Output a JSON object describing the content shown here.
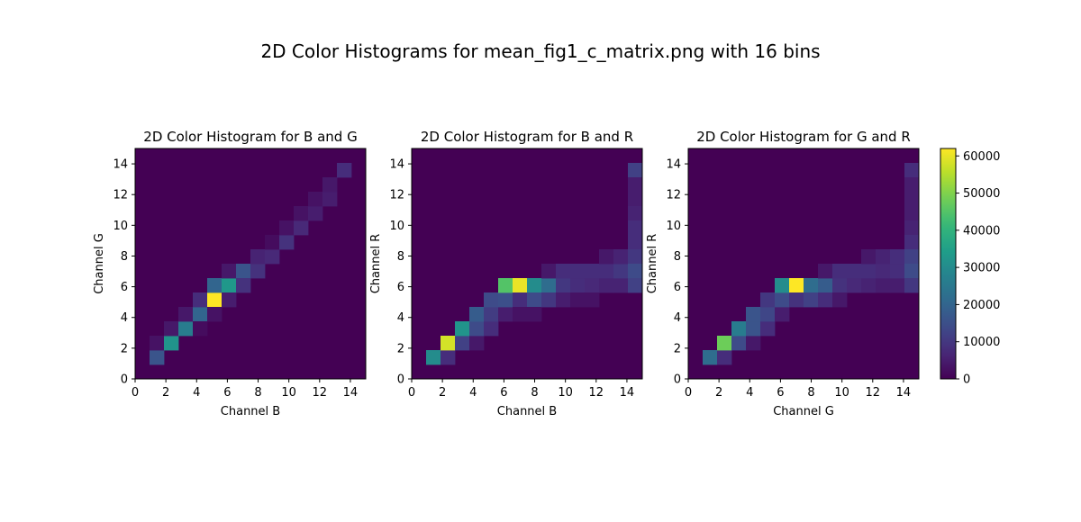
{
  "figure": {
    "title": "2D Color Histograms for mean_fig1_c_matrix.png with 16 bins"
  },
  "chart_data": [
    {
      "type": "heatmap",
      "title": "2D Color Histogram for B and G",
      "xlabel": "Channel B",
      "ylabel": "Channel G",
      "xlim": [
        0,
        15
      ],
      "ylim": [
        0,
        15
      ],
      "x_ticks": [
        0,
        2,
        4,
        6,
        8,
        10,
        12,
        14
      ],
      "y_ticks": [
        0,
        2,
        4,
        6,
        8,
        10,
        12,
        14
      ],
      "colormap": "viridis",
      "vmin": 0,
      "vmax": 62000,
      "cells": [
        [
          1,
          1,
          16000
        ],
        [
          1,
          2,
          3000
        ],
        [
          2,
          2,
          32000
        ],
        [
          2,
          3,
          4000
        ],
        [
          3,
          3,
          26000
        ],
        [
          3,
          4,
          4000
        ],
        [
          4,
          4,
          20000
        ],
        [
          4,
          5,
          8000
        ],
        [
          4,
          3,
          2000
        ],
        [
          5,
          5,
          62000
        ],
        [
          5,
          4,
          3000
        ],
        [
          5,
          6,
          20000
        ],
        [
          6,
          6,
          33000
        ],
        [
          6,
          5,
          5000
        ],
        [
          6,
          7,
          4000
        ],
        [
          7,
          7,
          16000
        ],
        [
          7,
          6,
          9000
        ],
        [
          8,
          7,
          9000
        ],
        [
          8,
          8,
          6000
        ],
        [
          9,
          8,
          7000
        ],
        [
          9,
          9,
          2000
        ],
        [
          10,
          9,
          9000
        ],
        [
          10,
          10,
          3000
        ],
        [
          11,
          10,
          7000
        ],
        [
          11,
          11,
          3000
        ],
        [
          12,
          11,
          5000
        ],
        [
          12,
          12,
          3000
        ],
        [
          13,
          12,
          5000
        ],
        [
          13,
          13,
          4000
        ],
        [
          14,
          14,
          8000
        ]
      ]
    },
    {
      "type": "heatmap",
      "title": "2D Color Histogram for B and R",
      "xlabel": "Channel B",
      "ylabel": "Channel R",
      "xlim": [
        0,
        15
      ],
      "ylim": [
        0,
        15
      ],
      "x_ticks": [
        0,
        2,
        4,
        6,
        8,
        10,
        12,
        14
      ],
      "y_ticks": [
        0,
        2,
        4,
        6,
        8,
        10,
        12,
        14
      ],
      "colormap": "viridis",
      "vmin": 0,
      "vmax": 62000,
      "cells": [
        [
          1,
          1,
          30000
        ],
        [
          2,
          1,
          8000
        ],
        [
          2,
          2,
          58000
        ],
        [
          3,
          2,
          12000
        ],
        [
          3,
          3,
          32000
        ],
        [
          4,
          2,
          4000
        ],
        [
          4,
          3,
          14000
        ],
        [
          4,
          4,
          18000
        ],
        [
          5,
          3,
          8000
        ],
        [
          5,
          4,
          11000
        ],
        [
          5,
          5,
          14000
        ],
        [
          6,
          4,
          5000
        ],
        [
          6,
          5,
          15000
        ],
        [
          6,
          6,
          45000
        ],
        [
          7,
          6,
          60000
        ],
        [
          7,
          5,
          8000
        ],
        [
          7,
          4,
          3000
        ],
        [
          8,
          6,
          30000
        ],
        [
          8,
          5,
          14000
        ],
        [
          8,
          4,
          3000
        ],
        [
          9,
          6,
          22000
        ],
        [
          9,
          5,
          10000
        ],
        [
          9,
          7,
          4000
        ],
        [
          10,
          6,
          10000
        ],
        [
          10,
          5,
          5000
        ],
        [
          10,
          7,
          8000
        ],
        [
          11,
          6,
          8000
        ],
        [
          11,
          7,
          8000
        ],
        [
          11,
          5,
          3000
        ],
        [
          12,
          6,
          7000
        ],
        [
          12,
          7,
          8000
        ],
        [
          12,
          5,
          3000
        ],
        [
          13,
          6,
          6000
        ],
        [
          13,
          7,
          8000
        ],
        [
          13,
          8,
          4000
        ],
        [
          14,
          6,
          6000
        ],
        [
          14,
          7,
          10000
        ],
        [
          14,
          8,
          6000
        ],
        [
          15,
          14,
          12000
        ],
        [
          15,
          13,
          5000
        ],
        [
          15,
          12,
          5000
        ],
        [
          15,
          11,
          6000
        ],
        [
          15,
          10,
          8000
        ],
        [
          15,
          9,
          8000
        ],
        [
          15,
          8,
          10000
        ],
        [
          15,
          7,
          14000
        ],
        [
          15,
          6,
          12000
        ]
      ]
    },
    {
      "type": "heatmap",
      "title": "2D Color Histogram for G and R",
      "xlabel": "Channel G",
      "ylabel": "Channel R",
      "xlim": [
        0,
        15
      ],
      "ylim": [
        0,
        15
      ],
      "x_ticks": [
        0,
        2,
        4,
        6,
        8,
        10,
        12,
        14
      ],
      "y_ticks": [
        0,
        2,
        4,
        6,
        8,
        10,
        12,
        14
      ],
      "colormap": "viridis",
      "vmin": 0,
      "vmax": 62000,
      "cells": [
        [
          1,
          1,
          22000
        ],
        [
          2,
          1,
          8000
        ],
        [
          2,
          2,
          48000
        ],
        [
          3,
          2,
          14000
        ],
        [
          3,
          3,
          26000
        ],
        [
          4,
          2,
          4000
        ],
        [
          4,
          3,
          16000
        ],
        [
          4,
          4,
          16000
        ],
        [
          5,
          3,
          8000
        ],
        [
          5,
          4,
          13000
        ],
        [
          5,
          5,
          10000
        ],
        [
          6,
          4,
          5000
        ],
        [
          6,
          5,
          14000
        ],
        [
          6,
          6,
          30000
        ],
        [
          7,
          6,
          62000
        ],
        [
          7,
          5,
          9000
        ],
        [
          8,
          6,
          22000
        ],
        [
          8,
          5,
          12000
        ],
        [
          9,
          6,
          18000
        ],
        [
          9,
          5,
          8000
        ],
        [
          9,
          7,
          4000
        ],
        [
          10,
          6,
          9000
        ],
        [
          10,
          7,
          8000
        ],
        [
          10,
          5,
          4000
        ],
        [
          11,
          6,
          7000
        ],
        [
          11,
          7,
          8000
        ],
        [
          12,
          6,
          6000
        ],
        [
          12,
          7,
          8000
        ],
        [
          12,
          8,
          4000
        ],
        [
          13,
          6,
          5000
        ],
        [
          13,
          7,
          7000
        ],
        [
          13,
          8,
          6000
        ],
        [
          14,
          6,
          5000
        ],
        [
          14,
          7,
          8000
        ],
        [
          14,
          8,
          8000
        ],
        [
          15,
          14,
          8000
        ],
        [
          15,
          13,
          5000
        ],
        [
          15,
          12,
          5000
        ],
        [
          15,
          11,
          5000
        ],
        [
          15,
          10,
          6000
        ],
        [
          15,
          9,
          8000
        ],
        [
          15,
          8,
          12000
        ],
        [
          15,
          7,
          14000
        ],
        [
          15,
          6,
          10000
        ]
      ]
    }
  ],
  "colorbar": {
    "ticks": [
      0,
      10000,
      20000,
      30000,
      40000,
      50000,
      60000
    ],
    "vmin": 0,
    "vmax": 62000,
    "colormap": "viridis"
  }
}
